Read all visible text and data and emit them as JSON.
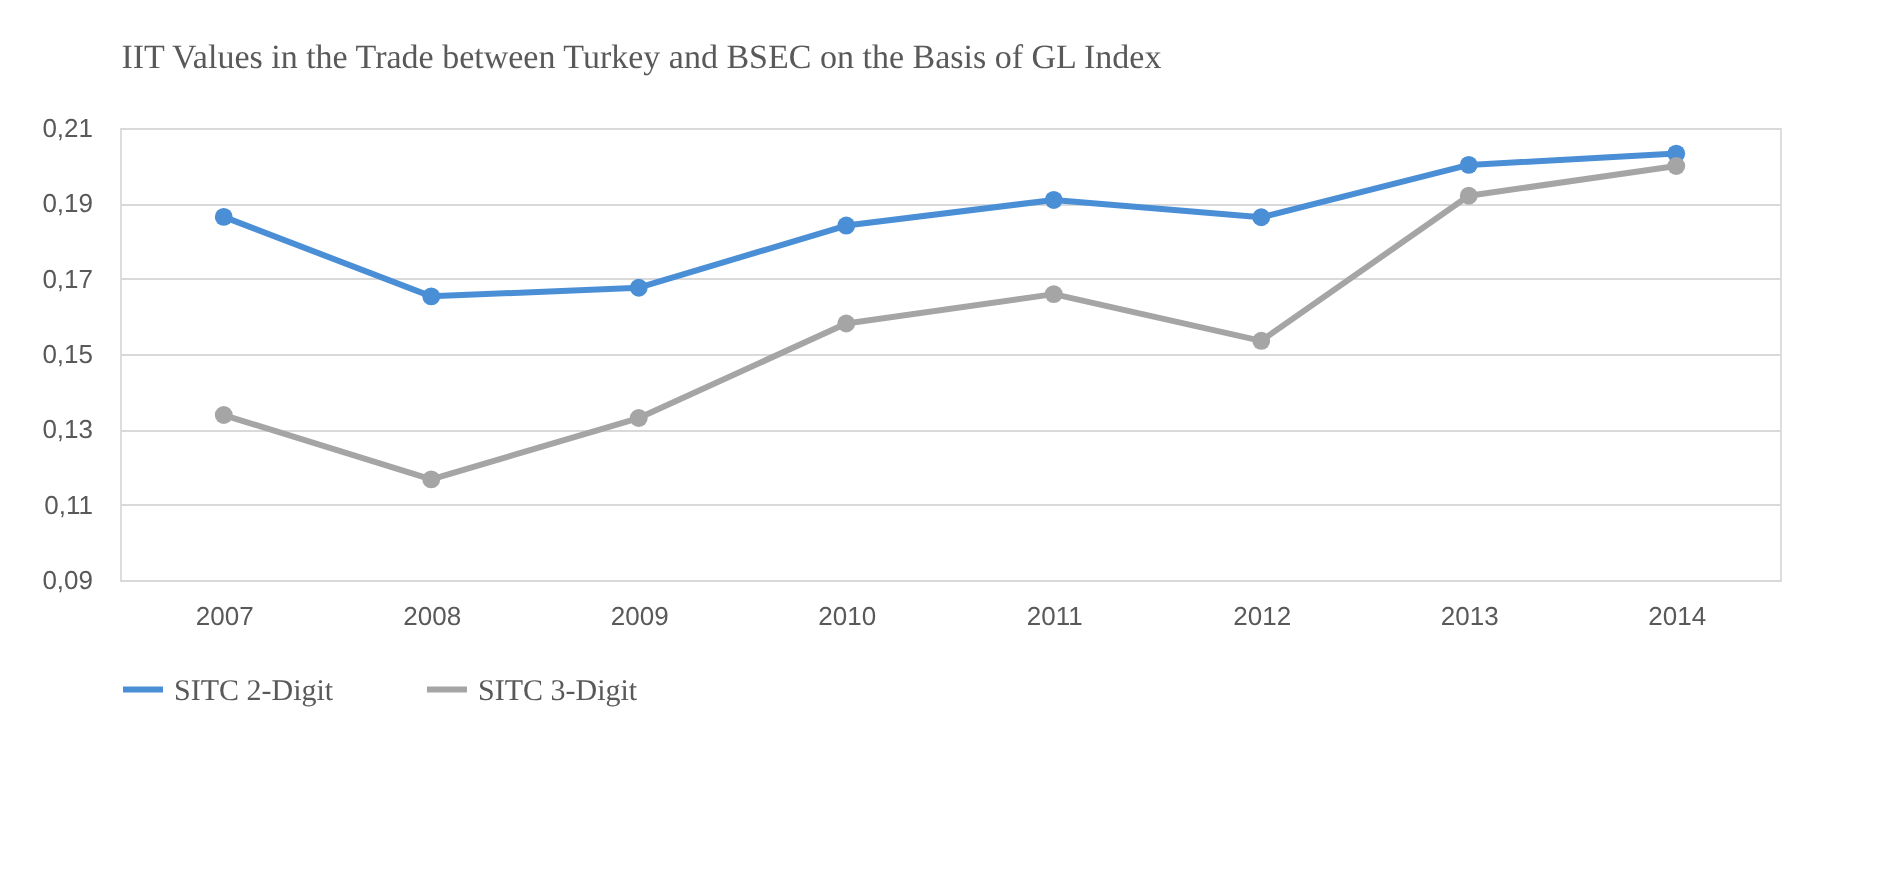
{
  "chart_data": {
    "type": "line",
    "title": "IIT Values in the Trade between Turkey and BSEC on the Basis of GL Index",
    "categories": [
      "2007",
      "2008",
      "2009",
      "2010",
      "2011",
      "2012",
      "2013",
      "2014"
    ],
    "series": [
      {
        "name": "SITC 2-Digit",
        "color": "#4a8fd6",
        "values": [
          0.1864,
          0.1653,
          0.1676,
          0.1841,
          0.1909,
          0.1863,
          0.2002,
          0.2032
        ]
      },
      {
        "name": "SITC 3-Digit",
        "color": "#a5a5a5",
        "values": [
          0.1338,
          0.1167,
          0.133,
          0.1581,
          0.1659,
          0.1535,
          0.192,
          0.1999
        ]
      }
    ],
    "ylim": [
      0.09,
      0.21
    ],
    "yticks": [
      {
        "value": 0.09,
        "label": "0,09"
      },
      {
        "value": 0.11,
        "label": "0,11"
      },
      {
        "value": 0.13,
        "label": "0,13"
      },
      {
        "value": 0.15,
        "label": "0,15"
      },
      {
        "value": 0.17,
        "label": "0,17"
      },
      {
        "value": 0.19,
        "label": "0,19"
      },
      {
        "value": 0.21,
        "label": "0,21"
      }
    ],
    "grid": "y",
    "legend": "bottom",
    "marker": "circle",
    "line_style": "solid"
  }
}
